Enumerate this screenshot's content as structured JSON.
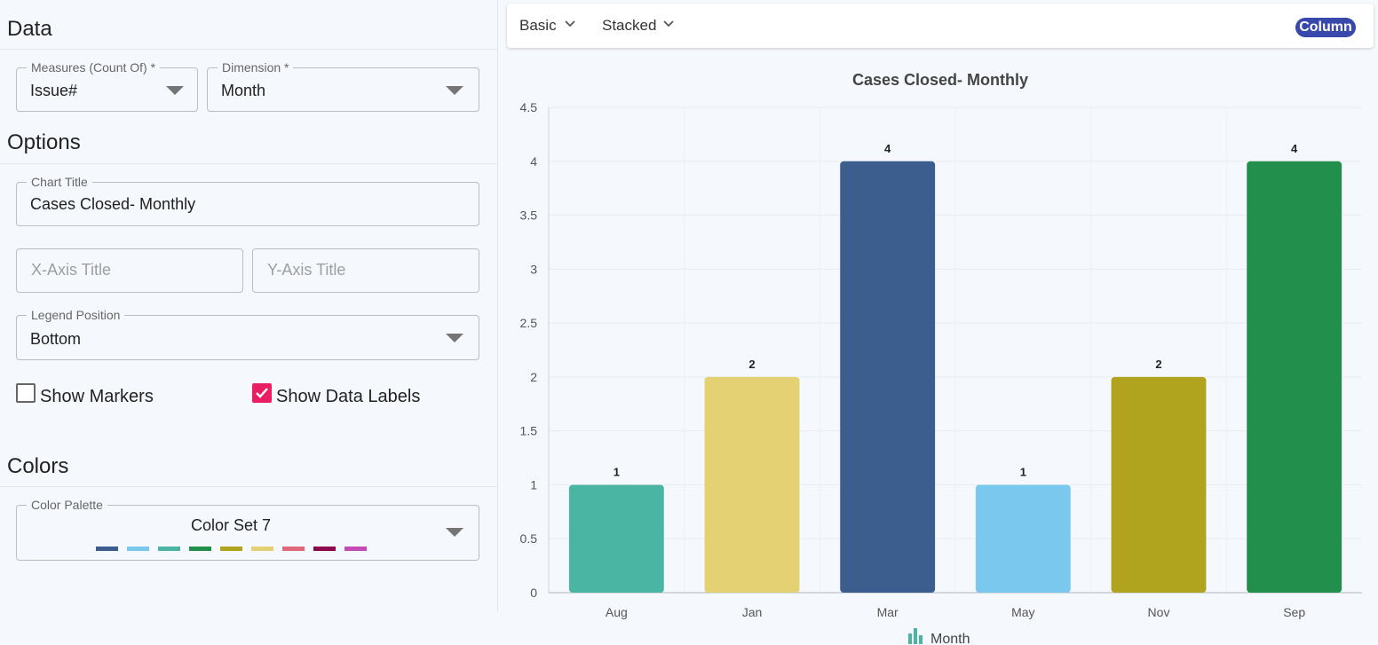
{
  "sections": {
    "data": "Data",
    "options": "Options",
    "colors": "Colors"
  },
  "fields": {
    "measures": {
      "label": "Measures (Count Of) *",
      "value": "Issue#"
    },
    "dimension": {
      "label": "Dimension *",
      "value": "Month"
    },
    "chart_title": {
      "label": "Chart Title",
      "value": "Cases Closed- Monthly"
    },
    "x_axis_title": {
      "placeholder": "X-Axis Title"
    },
    "y_axis_title": {
      "placeholder": "Y-Axis Title"
    },
    "legend_position": {
      "label": "Legend Position",
      "value": "Bottom"
    },
    "color_palette": {
      "label": "Color Palette",
      "value": "Color Set 7",
      "swatches": [
        "#3b5e8e",
        "#7bc8ee",
        "#4ab5a3",
        "#238f4c",
        "#b0a41f",
        "#e3d174",
        "#e0687c",
        "#8b0a4e",
        "#c24bb4"
      ]
    }
  },
  "checkboxes": {
    "show_markers": {
      "label": "Show Markers",
      "checked": false
    },
    "show_data_labels": {
      "label": "Show Data Labels",
      "checked": true
    }
  },
  "toolbar": {
    "basic": "Basic",
    "stacked": "Stacked",
    "chart_type": "Column"
  },
  "colors": {
    "accent_checkbox": "#e91e63",
    "badge": "#3949ab"
  },
  "chart_data": {
    "type": "bar",
    "title": "Cases Closed- Monthly",
    "categories": [
      "Aug",
      "Jan",
      "Mar",
      "May",
      "Nov",
      "Sep"
    ],
    "values": [
      1,
      2,
      4,
      1,
      2,
      4
    ],
    "bar_colors": [
      "#4ab5a3",
      "#e3d174",
      "#3b5e8e",
      "#7bc8ee",
      "#b0a41f",
      "#238f4c"
    ],
    "ylim": [
      0,
      4.5
    ],
    "yticks": [
      "0",
      "0.5",
      "1",
      "1.5",
      "2",
      "2.5",
      "3",
      "3.5",
      "4",
      "4.5"
    ],
    "xlabel": "",
    "ylabel": "",
    "data_labels": true,
    "grid": true,
    "legend": {
      "position": "bottom",
      "entries": [
        "Month"
      ],
      "icon": "bar-chart-icon",
      "color": "#4ab5a3"
    }
  }
}
